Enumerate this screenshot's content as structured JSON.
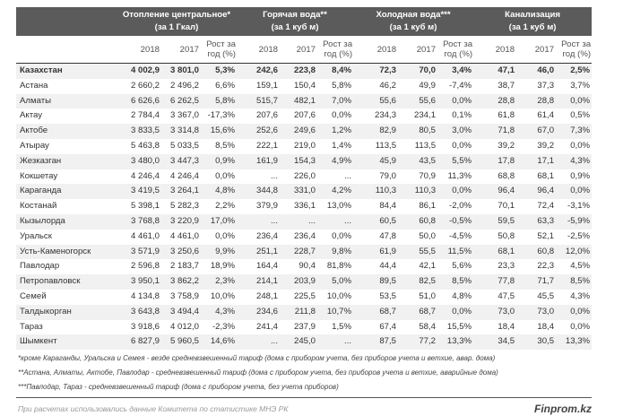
{
  "groups": [
    {
      "name": "Отопление центральное*",
      "unit": "(за 1 Гкал)"
    },
    {
      "name": "Горячая вода**",
      "unit": "(за 1 куб м)"
    },
    {
      "name": "Холодная вода***",
      "unit": "(за 1 куб м)"
    },
    {
      "name": "Канализация",
      "unit": "(за 1 куб м)"
    }
  ],
  "sub": {
    "y2018": "2018",
    "y2017": "2017",
    "growth": "Рост за год (%)"
  },
  "rows": [
    [
      "Казахстан",
      "4 002,9",
      "3 801,0",
      "5,3%",
      "242,6",
      "223,8",
      "8,4%",
      "72,3",
      "70,0",
      "3,4%",
      "47,1",
      "46,0",
      "2,5%"
    ],
    [
      "Астана",
      "2 660,2",
      "2 496,2",
      "6,6%",
      "159,1",
      "150,4",
      "5,8%",
      "46,2",
      "49,9",
      "-7,4%",
      "38,7",
      "37,3",
      "3,7%"
    ],
    [
      "Алматы",
      "6 626,6",
      "6 262,5",
      "5,8%",
      "515,7",
      "482,1",
      "7,0%",
      "55,6",
      "55,6",
      "0,0%",
      "28,8",
      "28,8",
      "0,0%"
    ],
    [
      "Актау",
      "2 784,4",
      "3 367,0",
      "-17,3%",
      "207,6",
      "207,6",
      "0,0%",
      "234,3",
      "234,1",
      "0,1%",
      "61,8",
      "61,4",
      "0,5%"
    ],
    [
      "Актобе",
      "3 833,5",
      "3 314,8",
      "15,6%",
      "252,6",
      "249,6",
      "1,2%",
      "82,9",
      "80,5",
      "3,0%",
      "71,8",
      "67,0",
      "7,3%"
    ],
    [
      "Атырау",
      "5 463,8",
      "5 033,5",
      "8,5%",
      "222,1",
      "219,0",
      "1,4%",
      "113,5",
      "113,5",
      "0,0%",
      "39,2",
      "39,2",
      "0,0%"
    ],
    [
      "Жезказган",
      "3 480,0",
      "3 447,3",
      "0,9%",
      "161,9",
      "154,3",
      "4,9%",
      "45,9",
      "43,5",
      "5,5%",
      "17,8",
      "17,1",
      "4,3%"
    ],
    [
      "Кокшетау",
      "4 246,4",
      "4 246,4",
      "0,0%",
      "...",
      "226,0",
      "...",
      "79,0",
      "70,9",
      "11,3%",
      "68,8",
      "68,1",
      "0,9%"
    ],
    [
      "Караганда",
      "3 419,5",
      "3 264,1",
      "4,8%",
      "344,8",
      "331,0",
      "4,2%",
      "110,3",
      "110,3",
      "0,0%",
      "96,4",
      "96,4",
      "0,0%"
    ],
    [
      "Костанай",
      "5 398,1",
      "5 282,3",
      "2,2%",
      "379,9",
      "336,1",
      "13,0%",
      "84,4",
      "86,1",
      "-2,0%",
      "70,1",
      "72,4",
      "-3,1%"
    ],
    [
      "Кызылорда",
      "3 768,8",
      "3 220,9",
      "17,0%",
      "...",
      "...",
      "...",
      "60,5",
      "60,8",
      "-0,5%",
      "59,5",
      "63,3",
      "-5,9%"
    ],
    [
      "Уральск",
      "4 461,0",
      "4 461,0",
      "0,0%",
      "236,4",
      "236,4",
      "0,0%",
      "47,8",
      "50,0",
      "-4,5%",
      "50,8",
      "52,1",
      "-2,5%"
    ],
    [
      "Усть-Каменогорск",
      "3 571,9",
      "3 250,6",
      "9,9%",
      "251,1",
      "228,7",
      "9,8%",
      "61,9",
      "55,5",
      "11,5%",
      "68,1",
      "60,8",
      "12,0%"
    ],
    [
      "Павлодар",
      "2 596,8",
      "2 183,7",
      "18,9%",
      "164,4",
      "90,4",
      "81,8%",
      "44,4",
      "42,1",
      "5,6%",
      "23,3",
      "22,3",
      "4,5%"
    ],
    [
      "Петропавловск",
      "3 950,1",
      "3 862,2",
      "2,3%",
      "214,1",
      "203,9",
      "5,0%",
      "89,5",
      "82,5",
      "8,5%",
      "77,8",
      "71,7",
      "8,5%"
    ],
    [
      "Семей",
      "4 134,8",
      "3 758,9",
      "10,0%",
      "248,1",
      "225,5",
      "10,0%",
      "53,5",
      "51,0",
      "4,8%",
      "47,5",
      "45,5",
      "4,3%"
    ],
    [
      "Талдыкорган",
      "3 643,8",
      "3 494,4",
      "4,3%",
      "234,6",
      "211,8",
      "10,7%",
      "68,7",
      "68,7",
      "0,0%",
      "73,0",
      "73,0",
      "0,0%"
    ],
    [
      "Тараз",
      "3 918,6",
      "4 012,0",
      "-2,3%",
      "241,4",
      "237,9",
      "1,5%",
      "67,4",
      "58,4",
      "15,5%",
      "18,4",
      "18,4",
      "0,0%"
    ],
    [
      "Шымкент",
      "6 827,9",
      "5 960,5",
      "14,6%",
      "...",
      "245,0",
      "...",
      "87,5",
      "77,2",
      "13,3%",
      "34,5",
      "30,5",
      "13,3%"
    ]
  ],
  "notes": [
    "*кроме Караганды, Уральска и Семея - везде средневзвешенный тариф (дома с прибором учета, без приборов учета и ветхие, авар. дома)",
    "**Астана, Алматы, Актобе, Павлодар - средневзвешенный тариф (дома с прибором учета, без приборов учета и ветхие, аварийные дома)",
    "***Павлодар, Тараз - средневзвешенный тариф (дома с прибором учета, без учета приборов)"
  ],
  "source": "При расчетах использовались данные Комитета по статистике МНЭ РК",
  "logo": "Finprom.kz",
  "colors": {
    "header_bg": "#5b5b5b",
    "stripe": "#f1f1f1"
  }
}
